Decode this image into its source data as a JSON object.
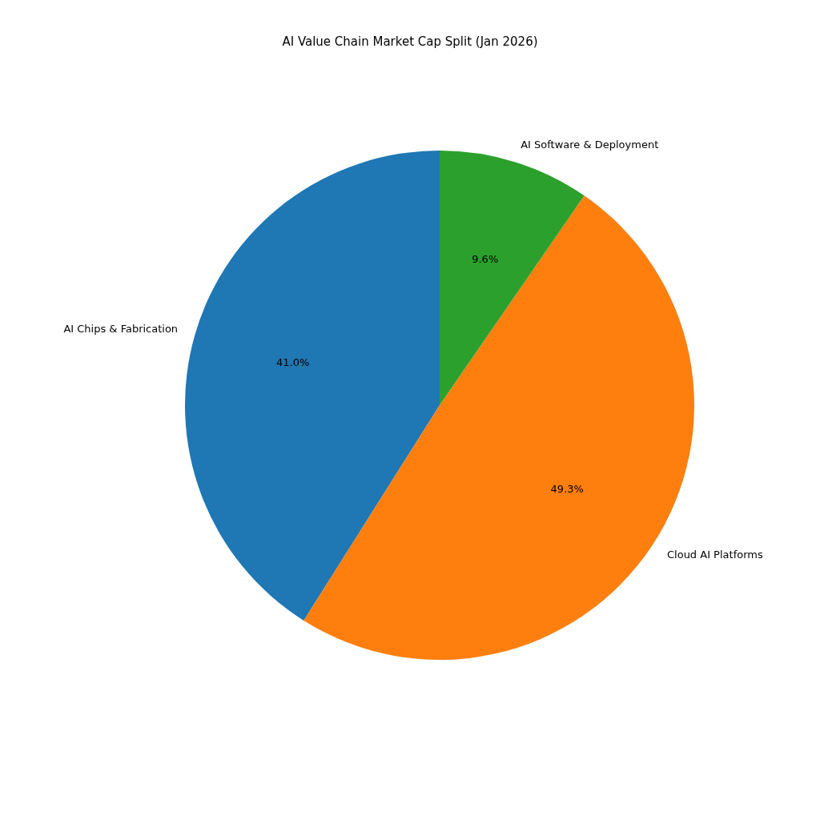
{
  "chart_data": {
    "type": "pie",
    "title": "AI Value Chain Market Cap Split (Jan 2026)",
    "categories": [
      "AI Chips & Fabrication",
      "Cloud AI Platforms",
      "AI Software & Deployment"
    ],
    "values": [
      41.0,
      49.3,
      9.6
    ],
    "colors": [
      "#1f77b4",
      "#ff7f0e",
      "#2ca02c"
    ],
    "value_labels": [
      "41.0%",
      "49.3%",
      "9.6%"
    ],
    "legend": false
  }
}
